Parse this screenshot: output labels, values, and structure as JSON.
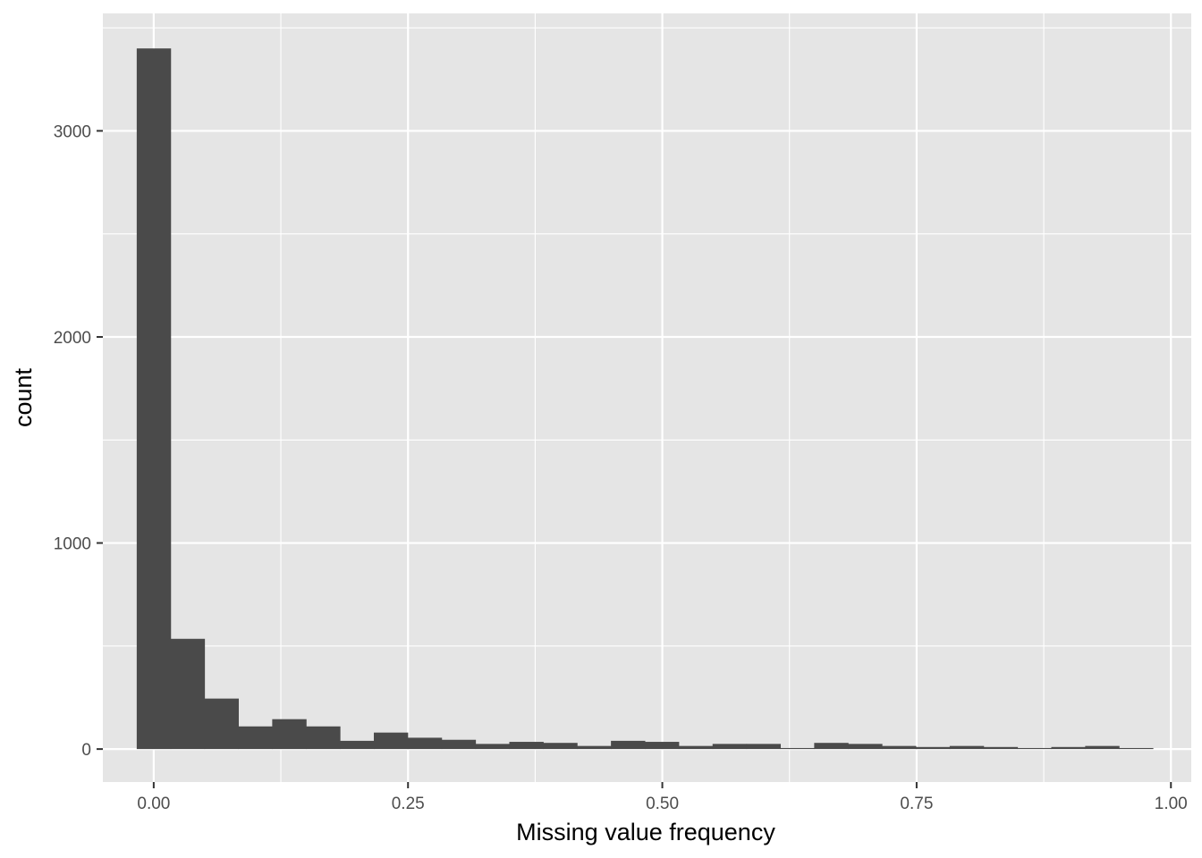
{
  "chart_data": {
    "type": "bar",
    "subtype": "histogram",
    "title": "",
    "xlabel": "Missing value frequency",
    "ylabel": "count",
    "xlim": [
      -0.05,
      1.02
    ],
    "ylim": [
      -160,
      3570
    ],
    "x_ticks": [
      0.0,
      0.25,
      0.5,
      0.75,
      1.0
    ],
    "x_tick_labels": [
      "0.00",
      "0.25",
      "0.50",
      "0.75",
      "1.00"
    ],
    "y_ticks": [
      0,
      1000,
      2000,
      3000
    ],
    "y_tick_labels": [
      "0",
      "1000",
      "2000",
      "3000"
    ],
    "grid": true,
    "legend": "none",
    "bin_width": 0.0333,
    "bin_start": -0.0167,
    "values": [
      3400,
      535,
      245,
      110,
      145,
      110,
      40,
      80,
      55,
      45,
      25,
      35,
      30,
      15,
      40,
      35,
      15,
      25,
      25,
      5,
      30,
      25,
      15,
      10,
      15,
      10,
      5,
      10,
      15,
      5
    ],
    "colors": {
      "panel": "#e5e5e5",
      "grid": "#ffffff",
      "bar": "#4a4a4a"
    }
  }
}
